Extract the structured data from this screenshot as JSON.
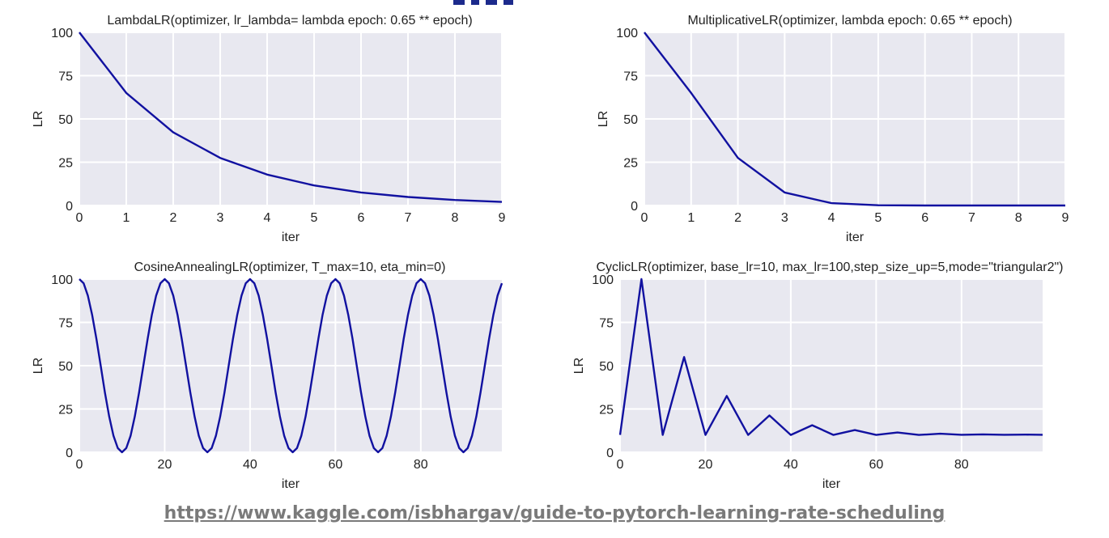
{
  "footer": {
    "link_text": "https://www.kaggle.com/isbhargav/guide-to-pytorch-learning-rate-scheduling"
  },
  "colors": {
    "plot_bg": "#e8e8f0",
    "grid": "#ffffff",
    "line": "#1111a0",
    "text": "#222222",
    "link": "#7a7a7a"
  },
  "chart_data": [
    {
      "type": "line",
      "title": "LambdaLR(optimizer, lr_lambda= lambda epoch: 0.65 ** epoch)",
      "xlabel": "iter",
      "ylabel": "LR",
      "xlim": [
        0,
        9
      ],
      "ylim": [
        0,
        100
      ],
      "xticks": [
        0,
        1,
        2,
        3,
        4,
        5,
        6,
        7,
        8,
        9
      ],
      "yticks": [
        0,
        25,
        50,
        75,
        100
      ],
      "grid": true,
      "series": [
        {
          "x": [
            0,
            1,
            2,
            3,
            4,
            5,
            6,
            7,
            8,
            9
          ],
          "y": [
            100,
            65,
            42.25,
            27.46,
            17.85,
            11.6,
            7.54,
            4.9,
            3.19,
            2.07
          ]
        }
      ]
    },
    {
      "type": "line",
      "title": "MultiplicativeLR(optimizer, lambda epoch: 0.65 ** epoch)",
      "xlabel": "iter",
      "ylabel": "LR",
      "xlim": [
        0,
        9
      ],
      "ylim": [
        0,
        100
      ],
      "xticks": [
        0,
        1,
        2,
        3,
        4,
        5,
        6,
        7,
        8,
        9
      ],
      "yticks": [
        0,
        25,
        50,
        75,
        100
      ],
      "grid": true,
      "series": [
        {
          "x": [
            0,
            1,
            2,
            3,
            4,
            5,
            6,
            7,
            8,
            9
          ],
          "y": [
            100,
            65,
            27.46,
            7.54,
            1.34,
            0.16,
            0.01,
            0,
            0,
            0
          ]
        }
      ]
    },
    {
      "type": "line",
      "title": "CosineAnnealingLR(optimizer, T_max=10, eta_min=0)",
      "xlabel": "iter",
      "ylabel": "LR",
      "xlim": [
        0,
        99
      ],
      "ylim": [
        0,
        100
      ],
      "xticks": [
        0,
        20,
        40,
        60,
        80
      ],
      "yticks": [
        0,
        25,
        50,
        75,
        100
      ],
      "grid": true,
      "series": [
        {
          "x": [
            0,
            1,
            2,
            3,
            4,
            5,
            6,
            7,
            8,
            9,
            10,
            11,
            12,
            13,
            14,
            15,
            16,
            17,
            18,
            19,
            20,
            21,
            22,
            23,
            24,
            25,
            26,
            27,
            28,
            29,
            30,
            31,
            32,
            33,
            34,
            35,
            36,
            37,
            38,
            39,
            40,
            41,
            42,
            43,
            44,
            45,
            46,
            47,
            48,
            49,
            50,
            51,
            52,
            53,
            54,
            55,
            56,
            57,
            58,
            59,
            60,
            61,
            62,
            63,
            64,
            65,
            66,
            67,
            68,
            69,
            70,
            71,
            72,
            73,
            74,
            75,
            76,
            77,
            78,
            79,
            80,
            81,
            82,
            83,
            84,
            85,
            86,
            87,
            88,
            89,
            90,
            91,
            92,
            93,
            94,
            95,
            96,
            97,
            98,
            99
          ],
          "y": [
            100,
            97.6,
            90.5,
            79.4,
            65.5,
            50,
            34.5,
            20.6,
            9.5,
            2.4,
            0,
            2.4,
            9.5,
            20.6,
            34.5,
            50,
            65.5,
            79.4,
            90.5,
            97.6,
            100,
            97.6,
            90.5,
            79.4,
            65.5,
            50,
            34.5,
            20.6,
            9.5,
            2.4,
            0,
            2.4,
            9.5,
            20.6,
            34.5,
            50,
            65.5,
            79.4,
            90.5,
            97.6,
            100,
            97.6,
            90.5,
            79.4,
            65.5,
            50,
            34.5,
            20.6,
            9.5,
            2.4,
            0,
            2.4,
            9.5,
            20.6,
            34.5,
            50,
            65.5,
            79.4,
            90.5,
            97.6,
            100,
            97.6,
            90.5,
            79.4,
            65.5,
            50,
            34.5,
            20.6,
            9.5,
            2.4,
            0,
            2.4,
            9.5,
            20.6,
            34.5,
            50,
            65.5,
            79.4,
            90.5,
            97.6,
            100,
            97.6,
            90.5,
            79.4,
            65.5,
            50,
            34.5,
            20.6,
            9.5,
            2.4,
            0,
            2.4,
            9.5,
            20.6,
            34.5,
            50,
            65.5,
            79.4,
            90.5,
            97.6
          ]
        }
      ]
    },
    {
      "type": "line",
      "title": "CyclicLR(optimizer, base_lr=10, max_lr=100,step_size_up=5,mode=\"triangular2\")",
      "xlabel": "iter",
      "ylabel": "LR",
      "xlim": [
        0,
        99
      ],
      "ylim": [
        0,
        100
      ],
      "xticks": [
        0,
        20,
        40,
        60,
        80
      ],
      "yticks": [
        0,
        25,
        50,
        75,
        100
      ],
      "grid": true,
      "series": [
        {
          "x": [
            0,
            5,
            10,
            15,
            20,
            25,
            30,
            35,
            40,
            45,
            50,
            55,
            60,
            65,
            70,
            75,
            80,
            85,
            90,
            95,
            99
          ],
          "y": [
            10,
            100,
            10,
            55,
            10,
            32.5,
            10,
            21.25,
            10,
            15.6,
            10,
            12.8,
            10,
            11.4,
            10,
            10.7,
            10.1,
            10.35,
            10.1,
            10.2,
            10.1
          ]
        }
      ]
    }
  ]
}
